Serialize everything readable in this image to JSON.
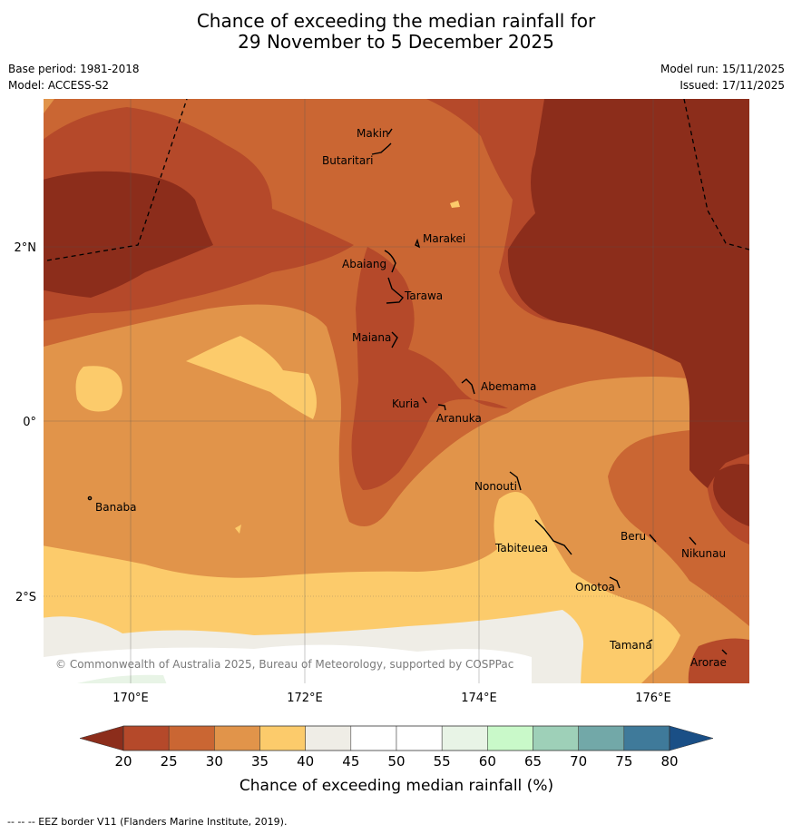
{
  "title": {
    "line1": "Chance of exceeding the median rainfall for",
    "line2": "29 November to 5 December 2025"
  },
  "meta": {
    "base_period": "Base period: 1981-2018",
    "model": "Model: ACCESS-S2",
    "model_run": "Model run: 15/11/2025",
    "issued": "Issued: 17/11/2025"
  },
  "axes": {
    "x_ticks": [
      "170°E",
      "172°E",
      "174°E",
      "176°E"
    ],
    "y_ticks": [
      "2°N",
      "0°",
      "2°S"
    ]
  },
  "places": [
    {
      "name": "Makin"
    },
    {
      "name": "Butaritari"
    },
    {
      "name": "Marakei"
    },
    {
      "name": "Abaiang"
    },
    {
      "name": "Tarawa"
    },
    {
      "name": "Maiana"
    },
    {
      "name": "Abemama"
    },
    {
      "name": "Kuria"
    },
    {
      "name": "Aranuka"
    },
    {
      "name": "Banaba"
    },
    {
      "name": "Nonouti"
    },
    {
      "name": "Tabiteuea"
    },
    {
      "name": "Beru"
    },
    {
      "name": "Nikunau"
    },
    {
      "name": "Onotoa"
    },
    {
      "name": "Tamana"
    },
    {
      "name": "Arorae"
    }
  ],
  "copyright": "© Commonwealth of Australia 2025, Bureau of Meteorology, supported by COSPPac",
  "colorbar": {
    "label": "Chance of exceeding median rainfall (%)",
    "ticks": [
      "20",
      "25",
      "30",
      "35",
      "40",
      "45",
      "50",
      "55",
      "60",
      "65",
      "70",
      "75",
      "80"
    ],
    "colors": [
      "#8c2d1b",
      "#b5492a",
      "#ca6633",
      "#e1944a",
      "#fccb6b",
      "#efede6",
      "#ffffff",
      "#ffffff",
      "#e8f4e6",
      "#c9f9c9",
      "#9ed0b8",
      "#72a8a8",
      "#3f7a9a",
      "#1a4f86"
    ]
  },
  "footnote": "--  --  -- EEZ border V11 (Flanders Marine Institute, 2019)."
}
